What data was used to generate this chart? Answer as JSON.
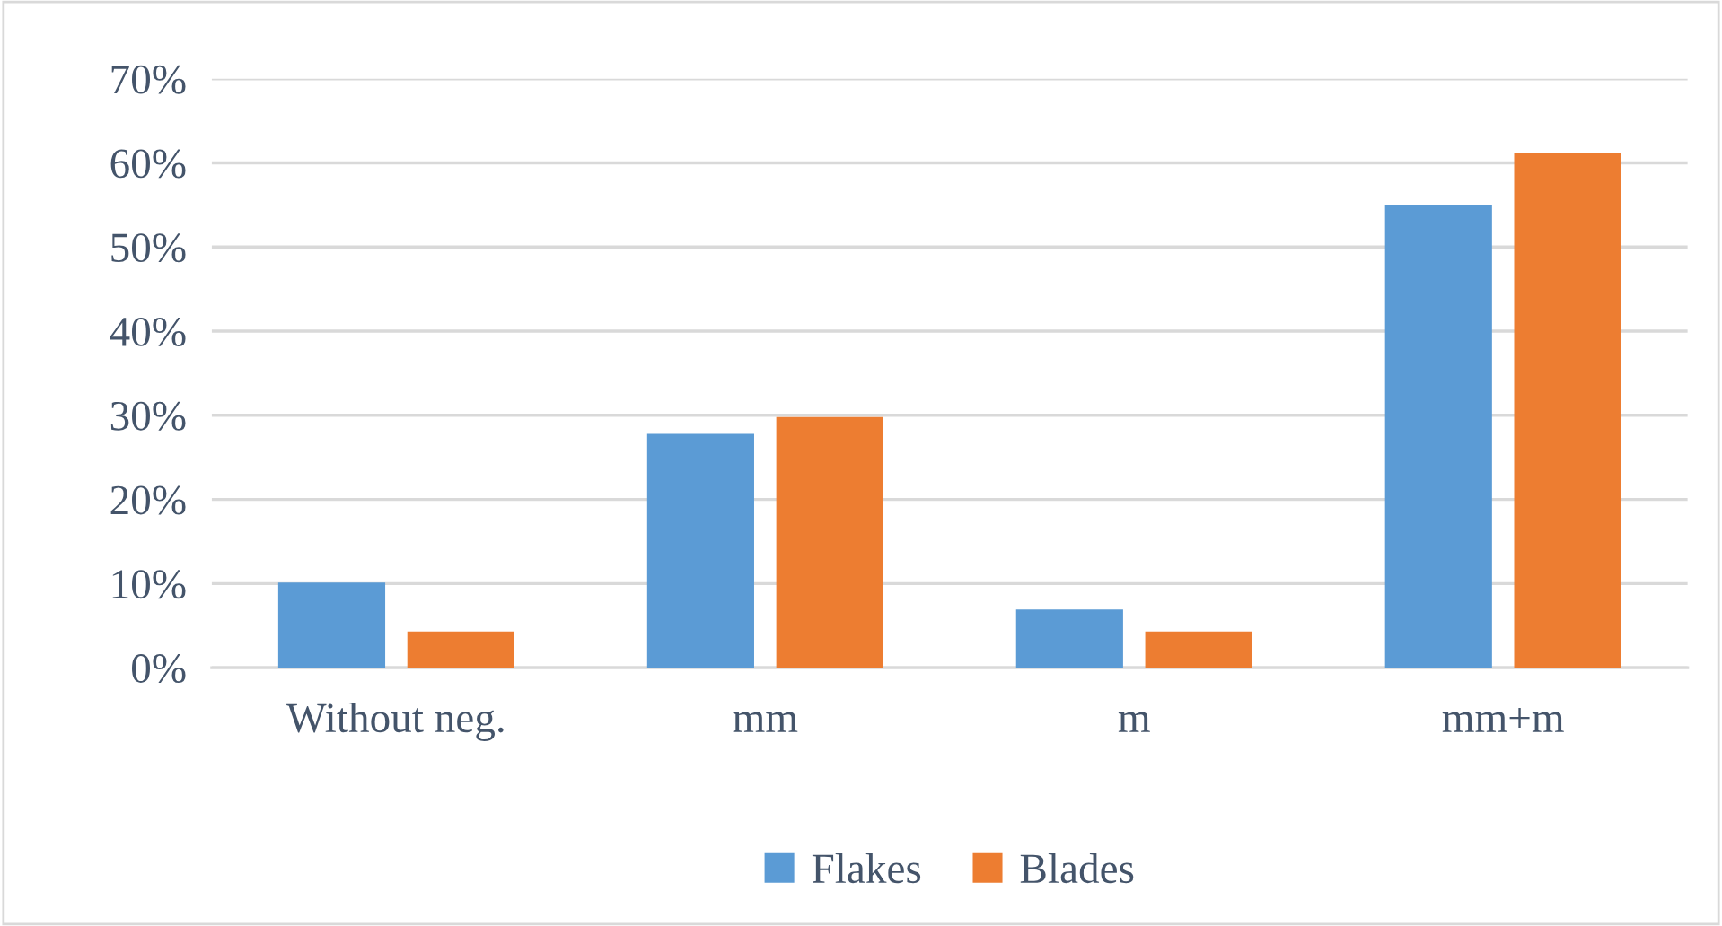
{
  "chart_data": {
    "type": "bar",
    "categories": [
      "Without neg.",
      "mm",
      "m",
      "mm+m"
    ],
    "series": [
      {
        "name": "Flakes",
        "color": "#5b9bd5",
        "values": [
          10.1,
          27.8,
          6.9,
          55.0
        ]
      },
      {
        "name": "Blades",
        "color": "#ed7d31",
        "values": [
          4.3,
          29.8,
          4.3,
          61.2
        ]
      }
    ],
    "ylim": [
      0,
      70
    ],
    "yticks": [
      {
        "value": 0,
        "label": "0%"
      },
      {
        "value": 10,
        "label": "10%"
      },
      {
        "value": 20,
        "label": "20%"
      },
      {
        "value": 30,
        "label": "30%"
      },
      {
        "value": 40,
        "label": "40%"
      },
      {
        "value": 50,
        "label": "50%"
      },
      {
        "value": 60,
        "label": "60%"
      },
      {
        "value": 70,
        "label": "70%"
      }
    ],
    "grid": "y",
    "legend": "bottom"
  }
}
